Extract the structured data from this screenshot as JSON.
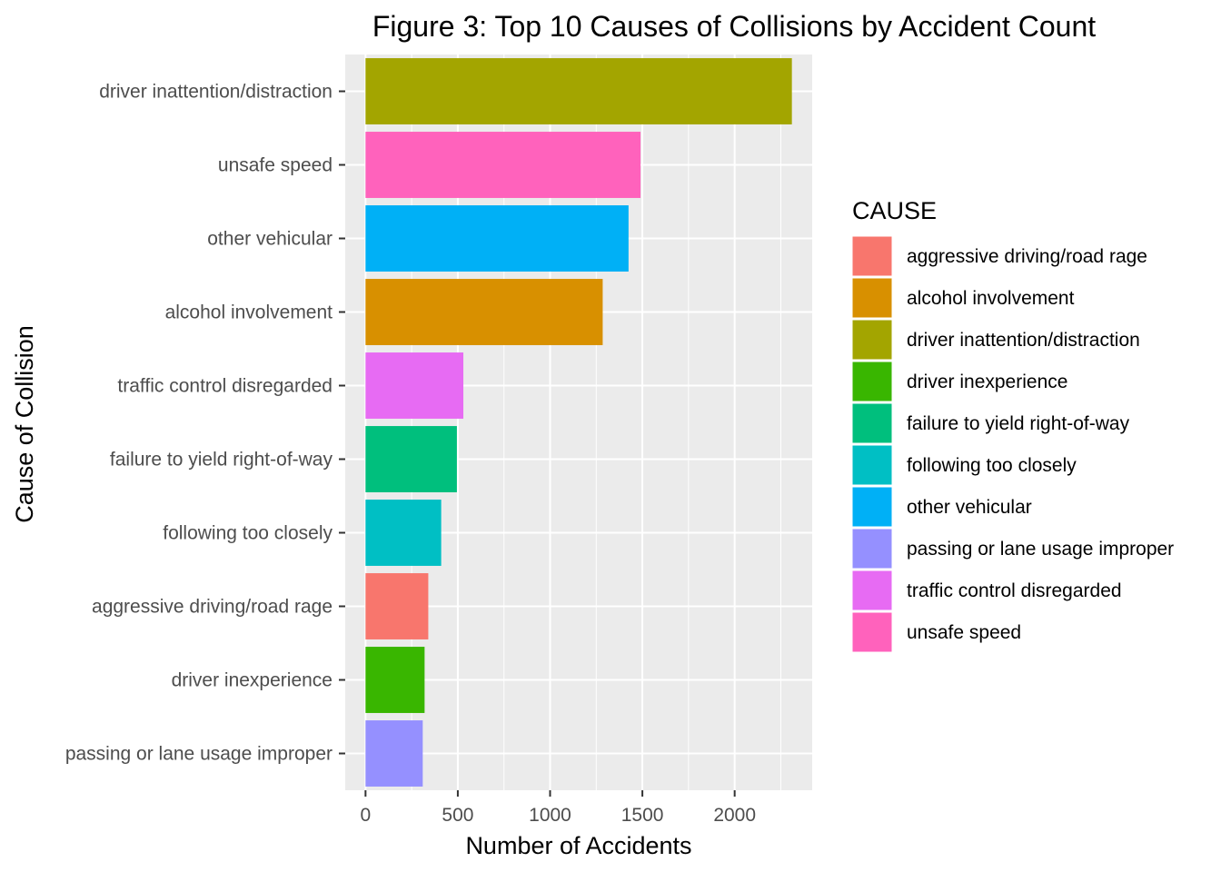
{
  "chart_data": {
    "type": "bar",
    "orientation": "horizontal",
    "title": "Figure 3: Top 10 Causes of Collisions by Accident Count",
    "xlabel": "Number of Accidents",
    "ylabel": "Cause of Collision",
    "xlim": [
      -110,
      2420
    ],
    "x_ticks": [
      0,
      500,
      1000,
      1500,
      2000
    ],
    "grid": true,
    "legend_title": "CAUSE",
    "legend_position": "right",
    "categories": [
      "driver inattention/distraction",
      "unsafe speed",
      "other vehicular",
      "alcohol involvement",
      "traffic control disregarded",
      "failure to yield right-of-way",
      "following too closely",
      "aggressive driving/road rage",
      "driver inexperience",
      "passing or lane usage improper"
    ],
    "values": [
      2310,
      1490,
      1425,
      1285,
      530,
      495,
      410,
      340,
      320,
      310
    ],
    "colors": [
      "#A3A500",
      "#FF62BC",
      "#00B0F6",
      "#D89000",
      "#E76BF3",
      "#00BF7D",
      "#00BFC4",
      "#F8766D",
      "#39B600",
      "#9590FF"
    ],
    "legend": [
      {
        "label": "aggressive driving/road rage",
        "color": "#F8766D"
      },
      {
        "label": "alcohol involvement",
        "color": "#D89000"
      },
      {
        "label": "driver inattention/distraction",
        "color": "#A3A500"
      },
      {
        "label": "driver inexperience",
        "color": "#39B600"
      },
      {
        "label": "failure to yield right-of-way",
        "color": "#00BF7D"
      },
      {
        "label": "following too closely",
        "color": "#00BFC4"
      },
      {
        "label": "other vehicular",
        "color": "#00B0F6"
      },
      {
        "label": "passing or lane usage improper",
        "color": "#9590FF"
      },
      {
        "label": "traffic control disregarded",
        "color": "#E76BF3"
      },
      {
        "label": "unsafe speed",
        "color": "#FF62BC"
      }
    ]
  }
}
